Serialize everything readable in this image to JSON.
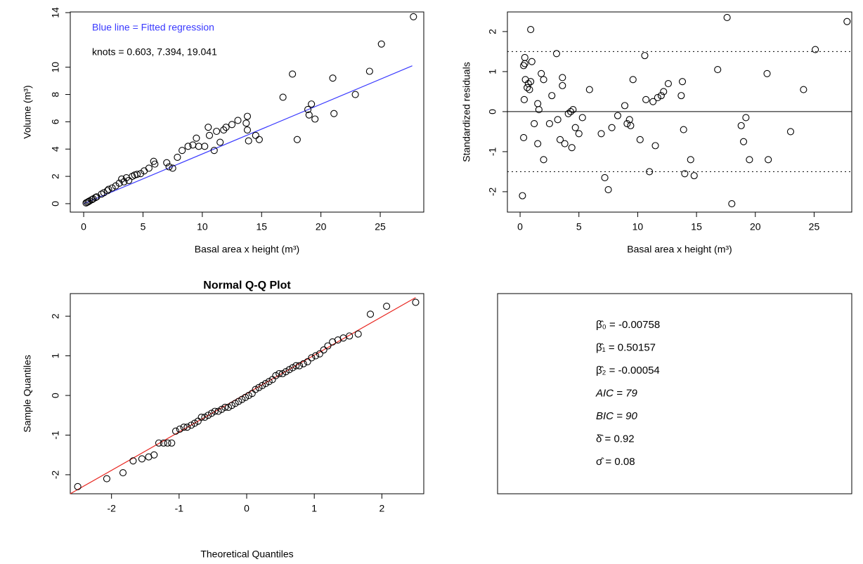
{
  "chart_data": [
    {
      "type": "scatter",
      "xlabel": "Basal area x height (m³)",
      "ylabel": "Volume (m³)",
      "annotations": [
        {
          "text": "Blue line = Fitted regression",
          "color": "#3a3aff"
        },
        {
          "text": "knots = 0.603, 7.394, 19.041",
          "color": "#000000"
        }
      ],
      "xlim": [
        -1.13,
        28.67
      ],
      "ylim": [
        -0.62,
        14.05
      ],
      "xticks": [
        0,
        5,
        10,
        15,
        20,
        25
      ],
      "yticks": [
        0,
        2,
        4,
        6,
        8,
        10,
        14
      ],
      "line": {
        "color": "#3a3aff",
        "x": [
          0,
          27.7
        ],
        "y": [
          -0.0076,
          10.1
        ]
      },
      "points": {
        "color": "#000000",
        "x": [
          0.2,
          0.3,
          0.4,
          0.5,
          0.7,
          0.8,
          1,
          1.1,
          1.5,
          1.7,
          2,
          2.1,
          2.4,
          2.7,
          3,
          3.2,
          3.4,
          3.6,
          3.8,
          4.1,
          4.3,
          4.5,
          4.8,
          5.1,
          5.5,
          5.9,
          6,
          7,
          7.2,
          7.5,
          7.9,
          8.3,
          8.8,
          9.2,
          9.5,
          9.7,
          10.2,
          10.5,
          10.6,
          11,
          11.2,
          11.5,
          11.8,
          12,
          12.5,
          13,
          13.7,
          13.8,
          13.8,
          13.9,
          14.5,
          14.8,
          16.8,
          17.6,
          18,
          18.9,
          19,
          19.2,
          19.5,
          21,
          21.1,
          22.9,
          24.1,
          25.1,
          27.8
        ],
        "y": [
          0.05,
          0.1,
          0.15,
          0.2,
          0.3,
          0.35,
          0.45,
          0.5,
          0.7,
          0.8,
          0.95,
          1.05,
          1.15,
          1.3,
          1.5,
          1.8,
          1.6,
          1.9,
          1.7,
          2,
          2.1,
          2.15,
          2.2,
          2.4,
          2.6,
          3.1,
          2.9,
          3,
          2.7,
          2.6,
          3.4,
          3.9,
          4.2,
          4.3,
          4.8,
          4.2,
          4.2,
          5.6,
          5,
          3.9,
          5.3,
          4.5,
          5.4,
          5.6,
          5.8,
          6.1,
          5.9,
          6.4,
          5.4,
          4.6,
          5,
          4.7,
          7.8,
          9.5,
          4.7,
          6.9,
          6.5,
          7.3,
          6.2,
          9.2,
          6.6,
          8,
          9.7,
          11.7,
          13.7
        ]
      }
    },
    {
      "type": "scatter",
      "xlabel": "Basal area x height (m³)",
      "ylabel": "Standardized residuals",
      "xlim": [
        -1.08,
        28.2
      ],
      "ylim": [
        -2.51,
        2.49
      ],
      "xticks": [
        0,
        5,
        10,
        15,
        20,
        25
      ],
      "yticks": [
        -2,
        -1,
        0,
        1,
        2
      ],
      "hlines": [
        {
          "y": 0,
          "style": "solid"
        },
        {
          "y": 1.5,
          "style": "dotted"
        },
        {
          "y": -1.5,
          "style": "dotted"
        }
      ],
      "points": {
        "color": "#000000",
        "x": [
          0.2,
          0.3,
          0.3,
          0.4,
          0.4,
          0.35,
          0.45,
          0.6,
          0.7,
          0.8,
          0.9,
          0.9,
          1,
          1.2,
          1.5,
          1.5,
          1.6,
          1.8,
          2,
          2,
          2.5,
          2.7,
          3.1,
          3.2,
          3.4,
          3.6,
          3.6,
          3.8,
          4.1,
          4.3,
          4.5,
          4.4,
          4.7,
          5,
          5.3,
          5.9,
          6.9,
          7.2,
          7.5,
          7.8,
          8.3,
          8.9,
          9.1,
          9.3,
          9.4,
          9.6,
          10.2,
          10.6,
          10.7,
          11,
          11.3,
          11.5,
          11.7,
          12,
          12.2,
          12.6,
          13.7,
          13.8,
          13.9,
          14,
          14.5,
          14.8,
          16.8,
          17.6,
          18,
          18.8,
          19,
          19.2,
          19.5,
          21,
          21.1,
          23,
          24.1,
          25.1,
          27.8
        ],
        "y": [
          -2.1,
          -0.65,
          1.15,
          1.35,
          1.2,
          0.3,
          0.8,
          0.6,
          0.7,
          0.55,
          0.75,
          2.05,
          1.25,
          -0.3,
          0.2,
          -0.8,
          0.05,
          0.95,
          0.8,
          -1.2,
          -0.3,
          0.4,
          1.45,
          -0.2,
          -0.7,
          0.85,
          0.65,
          -0.8,
          -0.05,
          0,
          0.05,
          -0.9,
          -0.4,
          -0.55,
          -0.15,
          0.55,
          -0.55,
          -1.65,
          -1.95,
          -0.4,
          -0.1,
          0.15,
          -0.3,
          -0.2,
          -0.35,
          0.8,
          -0.7,
          1.4,
          0.3,
          -1.5,
          0.25,
          -0.85,
          0.35,
          0.4,
          0.5,
          0.7,
          0.4,
          0.75,
          -0.45,
          -1.55,
          -1.2,
          -1.6,
          1.05,
          2.35,
          -2.3,
          -0.35,
          -0.75,
          -0.15,
          -1.2,
          0.95,
          -1.2,
          -0.5,
          0.55,
          1.55,
          2.25
        ]
      }
    },
    {
      "type": "scatter",
      "title": "Normal Q-Q Plot",
      "xlabel": "Theoretical Quantiles",
      "ylabel": "Sample Quantiles",
      "xlim": [
        -2.61,
        2.62
      ],
      "ylim": [
        -2.48,
        2.57
      ],
      "xticks": [
        -2,
        -1,
        0,
        1,
        2
      ],
      "yticks": [
        -2,
        -1,
        0,
        1,
        2
      ],
      "line": {
        "color": "#e8251f",
        "x": [
          -2.61,
          2.5
        ],
        "y": [
          -2.48,
          2.47
        ]
      },
      "points": {
        "color": "#000000",
        "x": [
          -2.5,
          -2.07,
          -1.83,
          -1.68,
          -1.55,
          -1.45,
          -1.37,
          -1.3,
          -1.23,
          -1.17,
          -1.11,
          -1.05,
          -0.99,
          -0.93,
          -0.88,
          -0.82,
          -0.77,
          -0.72,
          -0.67,
          -0.62,
          -0.57,
          -0.52,
          -0.47,
          -0.42,
          -0.37,
          -0.32,
          -0.27,
          -0.22,
          -0.17,
          -0.12,
          -0.07,
          -0.02,
          0.03,
          0.08,
          0.13,
          0.18,
          0.23,
          0.28,
          0.33,
          0.38,
          0.43,
          0.48,
          0.53,
          0.58,
          0.63,
          0.68,
          0.73,
          0.78,
          0.84,
          0.9,
          0.96,
          1.02,
          1.08,
          1.14,
          1.2,
          1.27,
          1.35,
          1.43,
          1.52,
          1.65,
          1.83,
          2.07,
          2.5
        ],
        "y": [
          -2.3,
          -2.1,
          -1.95,
          -1.65,
          -1.6,
          -1.55,
          -1.5,
          -1.2,
          -1.2,
          -1.2,
          -1.2,
          -0.9,
          -0.85,
          -0.8,
          -0.8,
          -0.75,
          -0.7,
          -0.65,
          -0.55,
          -0.55,
          -0.5,
          -0.45,
          -0.4,
          -0.4,
          -0.35,
          -0.3,
          -0.3,
          -0.25,
          -0.2,
          -0.15,
          -0.1,
          -0.05,
          0,
          0.05,
          0.15,
          0.2,
          0.25,
          0.3,
          0.35,
          0.4,
          0.5,
          0.55,
          0.55,
          0.6,
          0.65,
          0.7,
          0.75,
          0.75,
          0.8,
          0.85,
          0.95,
          1.0,
          1.05,
          1.15,
          1.25,
          1.35,
          1.4,
          1.45,
          1.5,
          1.55,
          2.05,
          2.25,
          2.35
        ]
      }
    }
  ],
  "stats_box": {
    "lines": [
      {
        "text": "β̂₀ = -0.00758",
        "italic": false
      },
      {
        "text": "β̂₁ = 0.50157",
        "italic": false
      },
      {
        "text": "β̂₂ = -0.00054",
        "italic": false
      },
      {
        "text": "AIC =  79",
        "italic": true
      },
      {
        "text": "BIC =  90",
        "italic": true
      },
      {
        "text": "δ̂ = 0.92",
        "italic": false
      },
      {
        "text": "σ̂ = 0.08",
        "italic": false
      }
    ]
  }
}
